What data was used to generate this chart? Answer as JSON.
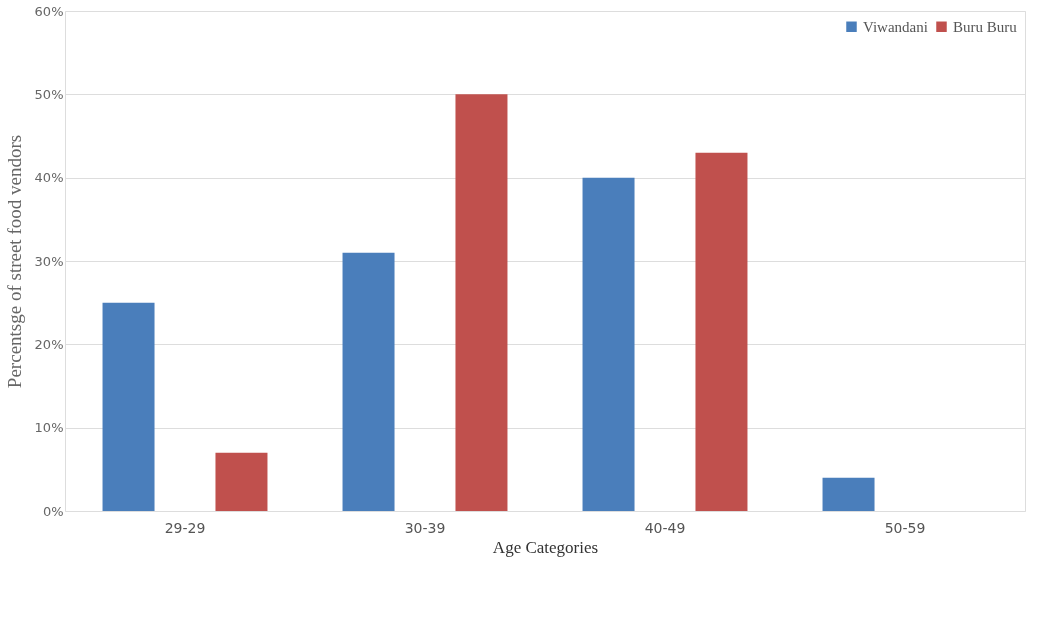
{
  "chart_data": {
    "type": "bar",
    "xlabel": "Age Categories",
    "ylabel": "Percentsge of street food vendors",
    "categories": [
      "29-29",
      "30-39",
      "40-49",
      "50-59"
    ],
    "series": [
      {
        "name": "Viwandani",
        "color": "#4a7ebb",
        "values": [
          25,
          31,
          40,
          4
        ]
      },
      {
        "name": "Buru Buru",
        "color": "#c0504d",
        "values": [
          7,
          50,
          43,
          0
        ]
      }
    ],
    "ylim": [
      0,
      60
    ],
    "yticks": [
      {
        "value": 0,
        "label": "0%"
      },
      {
        "value": 10,
        "label": "10%"
      },
      {
        "value": 20,
        "label": "20%"
      },
      {
        "value": 30,
        "label": "30%"
      },
      {
        "value": 40,
        "label": "40%"
      },
      {
        "value": 50,
        "label": "50%"
      },
      {
        "value": 60,
        "label": "60%"
      }
    ],
    "grid": "y",
    "legend": "top right"
  }
}
